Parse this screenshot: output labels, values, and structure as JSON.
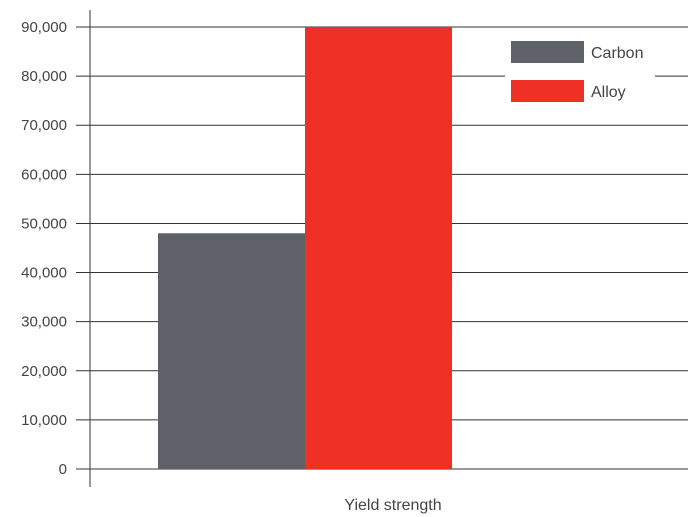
{
  "chart_data": {
    "type": "bar",
    "categories": [
      "Yield strength"
    ],
    "series": [
      {
        "name": "Carbon",
        "values": [
          48000
        ],
        "color": "#5f6369"
      },
      {
        "name": "Alloy",
        "values": [
          90000
        ],
        "color": "#ee3124"
      }
    ],
    "y_ticks": [
      "0",
      "10,000",
      "20,000",
      "30,000",
      "40,000",
      "50,000",
      "60,000",
      "70,000",
      "80,000",
      "90,000"
    ],
    "ylim": [
      0,
      90000
    ],
    "xlabel": "Yield strength",
    "grid": true,
    "legend_position": "top-right"
  }
}
